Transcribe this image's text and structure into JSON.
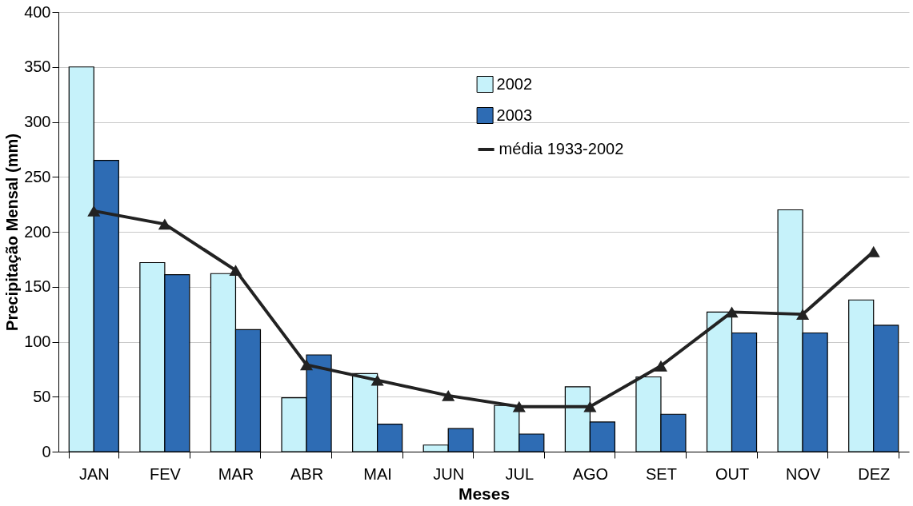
{
  "chart_data": {
    "type": "bar",
    "xlabel": "Meses",
    "ylabel": "Precipitação Mensal (mm)",
    "categories": [
      "JAN",
      "FEV",
      "MAR",
      "ABR",
      "MAI",
      "JUN",
      "JUL",
      "AGO",
      "SET",
      "OUT",
      "NOV",
      "DEZ"
    ],
    "series": [
      {
        "name": "2002",
        "color": "#c6f2fa",
        "values": [
          350,
          172,
          162,
          49,
          71,
          6,
          42,
          59,
          68,
          127,
          220,
          138
        ]
      },
      {
        "name": "2003",
        "color": "#2e6cb4",
        "values": [
          265,
          161,
          111,
          88,
          25,
          21,
          16,
          27,
          34,
          108,
          108,
          115
        ]
      },
      {
        "name": "média 1933-2002",
        "type": "line",
        "color": "#222222",
        "marker": "triangle",
        "values": [
          219,
          207,
          165,
          79,
          65,
          51,
          41,
          41,
          78,
          127,
          125,
          182
        ]
      }
    ],
    "ylim": [
      0,
      400
    ],
    "yticks": [
      0,
      50,
      100,
      150,
      200,
      250,
      300,
      350,
      400
    ],
    "grid": "y",
    "legend": "top"
  }
}
